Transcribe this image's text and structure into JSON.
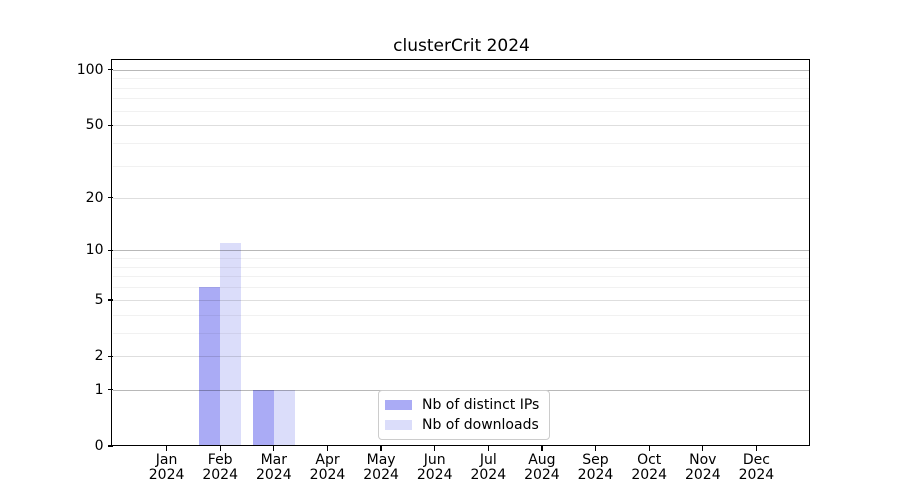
{
  "chart_data": {
    "type": "bar",
    "title": "clusterCrit 2024",
    "xlabel": "",
    "ylabel": "",
    "yscale": "log1p",
    "ylim": [
      0,
      111
    ],
    "y_major_ticks": [
      0,
      1,
      2,
      5,
      10,
      20,
      50,
      100
    ],
    "y_decade_ticks": [
      1,
      10,
      100
    ],
    "y_minor_ticks": [
      3,
      4,
      6,
      7,
      8,
      9,
      30,
      40,
      60,
      70,
      80,
      90
    ],
    "grid": "on",
    "legend_position": "bottom-center-inside",
    "categories": [
      {
        "m": "Jan",
        "y": "2024"
      },
      {
        "m": "Feb",
        "y": "2024"
      },
      {
        "m": "Mar",
        "y": "2024"
      },
      {
        "m": "Apr",
        "y": "2024"
      },
      {
        "m": "May",
        "y": "2024"
      },
      {
        "m": "Jun",
        "y": "2024"
      },
      {
        "m": "Jul",
        "y": "2024"
      },
      {
        "m": "Aug",
        "y": "2024"
      },
      {
        "m": "Sep",
        "y": "2024"
      },
      {
        "m": "Oct",
        "y": "2024"
      },
      {
        "m": "Nov",
        "y": "2024"
      },
      {
        "m": "Dec",
        "y": "2024"
      }
    ],
    "series": [
      {
        "name": "Nb of distinct IPs",
        "color": "#aaabf5",
        "values": [
          0,
          6,
          1,
          0,
          0,
          0,
          0,
          0,
          0,
          0,
          0,
          0
        ]
      },
      {
        "name": "Nb of downloads",
        "color": "#dbddfa",
        "values": [
          0,
          11,
          1,
          0,
          0,
          0,
          0,
          0,
          0,
          0,
          0,
          0
        ]
      }
    ]
  }
}
